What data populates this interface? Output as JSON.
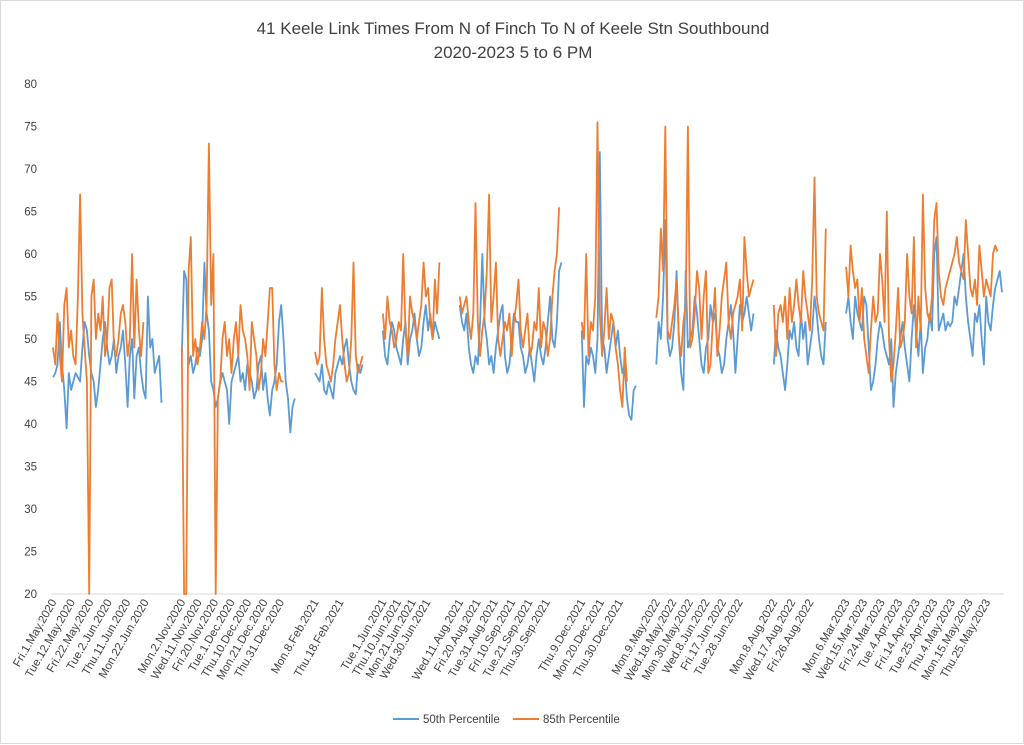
{
  "chart_data": {
    "type": "line",
    "title": "41 Keele Link Times From N of Finch To N of Keele Stn Southbound",
    "subtitle": "2020-2023 5 to 6 PM",
    "xlabel": "",
    "ylabel": "",
    "ylim": [
      20,
      80
    ],
    "yticks": [
      20,
      25,
      30,
      35,
      40,
      45,
      50,
      55,
      60,
      65,
      70,
      75,
      80
    ],
    "grid": false,
    "legend_position": "bottom",
    "colors": {
      "p50": "#5b9bd5",
      "p85": "#ed7d31"
    },
    "x_tick_labels": [
      "Fri.1.May.2020",
      "Tue.12.May.2020",
      "Fri.22.May.2020",
      "Tue.2.Jun.2020",
      "Thu.11.Jun.2020",
      "Mon.22.Jun.2020",
      "Mon.2.Nov.2020",
      "Wed.11.Nov.2020",
      "Fri.20.Nov.2020",
      "Tue.1.Dec.2020",
      "Thu.10.Dec.2020",
      "Mon.21.Dec.2020",
      "Thu.31.Dec.2020",
      "Mon.8.Feb.2021",
      "Thu.18.Feb.2021",
      "Tue.1.Jun.2021",
      "Thu.10.Jun.2021",
      "Mon.21.Jun.2021",
      "Wed.30.Jun.2021",
      "Wed.11.Aug.2021",
      "Fri.20.Aug.2021",
      "Tue.31.Aug.2021",
      "Fri.10.Sep.2021",
      "Tue.21.Sep.2021",
      "Thu.30.Sep.2021",
      "Thu.9.Dec.2021",
      "Mon.20.Dec.2021",
      "Thu.30.Dec.2021",
      "Mon.9.May.2022",
      "Wed.18.May.2022",
      "Mon.30.May.2022",
      "Wed.8.Jun.2022",
      "Fri.17.Jun.2022",
      "Tue.28.Jun.2022",
      "Mon.8.Aug.2022",
      "Wed.17.Aug.2022",
      "Fri.26.Aug.2022",
      "Mon.6.Mar.2023",
      "Wed.15.Mar.2023",
      "Fri.24.Mar.2023",
      "Tue.4.Apr.2023",
      "Fri.14.Apr.2023",
      "Tue.25.Apr.2023",
      "Thu.4.May.2023",
      "Mon.15.May.2023",
      "Thu.25.May.2023"
    ],
    "series": [
      {
        "name": "50th Percentile",
        "segments": [
          [
            45.5,
            46,
            47,
            52,
            47,
            44,
            39.5,
            46,
            44,
            45,
            46,
            45.5,
            45,
            49,
            52,
            51,
            48,
            46,
            45,
            42,
            44,
            47,
            50,
            52,
            49,
            47,
            48,
            50,
            46,
            48,
            49,
            51,
            47,
            42,
            48,
            50,
            43,
            48,
            49,
            46,
            44,
            43,
            55,
            49,
            50,
            46,
            47,
            48,
            42.5
          ],
          [
            48,
            58,
            57,
            47,
            48,
            46,
            47,
            49,
            48,
            50,
            59,
            53,
            51,
            45,
            44,
            42,
            43,
            45,
            46,
            45,
            44,
            40,
            45,
            46,
            47,
            48,
            45,
            46,
            44,
            47,
            46,
            45,
            43,
            44,
            47,
            48,
            44,
            46,
            43,
            41,
            44,
            45,
            47,
            52,
            54,
            50,
            45,
            43,
            39,
            42,
            43
          ],
          [
            46,
            45.5,
            45,
            47,
            44,
            43.5,
            45,
            44,
            43,
            46,
            47,
            48,
            47,
            49,
            50,
            47,
            45,
            44,
            43.5,
            47,
            46,
            47
          ],
          [
            51,
            48,
            47,
            50,
            52,
            51,
            49,
            48,
            47,
            50,
            52,
            47,
            50,
            51,
            53,
            50,
            48,
            49,
            52,
            54,
            51,
            53,
            50,
            52,
            51,
            50
          ],
          [
            54,
            52,
            51,
            53,
            49,
            47,
            46,
            48,
            47,
            52,
            60,
            52,
            50,
            47,
            48,
            46,
            49,
            51,
            53,
            54,
            48,
            46,
            47,
            50,
            53,
            52,
            52,
            49,
            48,
            46,
            47,
            49,
            47,
            45,
            48,
            50,
            48,
            47,
            49,
            52,
            55,
            50,
            49,
            52,
            58,
            59
          ],
          [
            51,
            42,
            48,
            47,
            49,
            48,
            46,
            50,
            72,
            50,
            49,
            46,
            48,
            50,
            52,
            49,
            51,
            48,
            46,
            47,
            43,
            41,
            40.5,
            44,
            44.5
          ],
          [
            47,
            52,
            50,
            55,
            64,
            50,
            48,
            49,
            52,
            58,
            50,
            46,
            44,
            58,
            49,
            50,
            51,
            55,
            53,
            50,
            47,
            46,
            49,
            50,
            54,
            52,
            53,
            49,
            48,
            46,
            47,
            50,
            52,
            54,
            51,
            46,
            50,
            54,
            52,
            53,
            55,
            53,
            51,
            53
          ],
          [
            47,
            51,
            49,
            48,
            46,
            44,
            47,
            51,
            50,
            52,
            49,
            48,
            53,
            50,
            52,
            47,
            49,
            51,
            55,
            53,
            50,
            48,
            47,
            52
          ],
          [
            53,
            55,
            52,
            50,
            55,
            53,
            52,
            51,
            55,
            54,
            49,
            44,
            45,
            47,
            50,
            52,
            51,
            49,
            48,
            47,
            50,
            42,
            46,
            48,
            50,
            52,
            49,
            47,
            45,
            50,
            54,
            51,
            48,
            52,
            46,
            49,
            50,
            53,
            51,
            60,
            62,
            51,
            52,
            53,
            51,
            52,
            51.5,
            52,
            55,
            54,
            56,
            58,
            60,
            55,
            52,
            50,
            48,
            53,
            52,
            54,
            50,
            47,
            55,
            52,
            51,
            54,
            56,
            57,
            58,
            55.5
          ]
        ]
      },
      {
        "name": "85th Percentile",
        "segments": [
          [
            49,
            47,
            53,
            48,
            45,
            54,
            56,
            49,
            51,
            48,
            47,
            55,
            67,
            53,
            49,
            45,
            20,
            55,
            57,
            50,
            53,
            51,
            55,
            48,
            50,
            56,
            57,
            49,
            48,
            50,
            53,
            54,
            52,
            48,
            50,
            60,
            49,
            57,
            51,
            48,
            52
          ],
          [
            49,
            20,
            20,
            58,
            62,
            48,
            50,
            47,
            49,
            52,
            50,
            54,
            73,
            54,
            60,
            20,
            43,
            45,
            50,
            52,
            48,
            50,
            46,
            50,
            52,
            48,
            54,
            51,
            50,
            48,
            44,
            52,
            50,
            48,
            44,
            46,
            50,
            48,
            52,
            56,
            56,
            47,
            44,
            46,
            45,
            45
          ],
          [
            48.5,
            47,
            48,
            56,
            50,
            47,
            46,
            45,
            47,
            50,
            52,
            54,
            50,
            47,
            45,
            46,
            50,
            59,
            48,
            46,
            47,
            48
          ],
          [
            53,
            50,
            55,
            52,
            51,
            49,
            50,
            52,
            51,
            60,
            51,
            48,
            55,
            53,
            52,
            50,
            52,
            54,
            59,
            55,
            56,
            52,
            50,
            57,
            53,
            59
          ],
          [
            55,
            53,
            54,
            55,
            52,
            50,
            53,
            66,
            52,
            48,
            51,
            53,
            58,
            67,
            52,
            55,
            59,
            50,
            48,
            50,
            52,
            51,
            53,
            48,
            52,
            54,
            57,
            51,
            49,
            51,
            53,
            48,
            49,
            52,
            51,
            56,
            49,
            52,
            51,
            48,
            50,
            55,
            58,
            60,
            65.5
          ],
          [
            52,
            50,
            60,
            48,
            52,
            51,
            55,
            75.5,
            53,
            48,
            51,
            56,
            50,
            53,
            52,
            49,
            47,
            44,
            42,
            49,
            45
          ],
          [
            52.5,
            55,
            63,
            58,
            75,
            51,
            50,
            52,
            54,
            57,
            50,
            48,
            52,
            54,
            75,
            49,
            50,
            53,
            58,
            56,
            50,
            55,
            58,
            46,
            47,
            52,
            56,
            48,
            51,
            55,
            57,
            59,
            52,
            50,
            53,
            54,
            55,
            57,
            51,
            62,
            58,
            55,
            56,
            57
          ],
          [
            54,
            48,
            53,
            54,
            52,
            55,
            50,
            56,
            52,
            54,
            57,
            54,
            52,
            58,
            55,
            53,
            51,
            57,
            69,
            55,
            53,
            52,
            51,
            63
          ],
          [
            58.5,
            55,
            61,
            58,
            56,
            57,
            52,
            56,
            50,
            48,
            46,
            51,
            55,
            52,
            53,
            60,
            57,
            52,
            65,
            50,
            45,
            47,
            51,
            56,
            49,
            50,
            52,
            60,
            55,
            53,
            62,
            49,
            55,
            51,
            67,
            56,
            53,
            52,
            55,
            64,
            66,
            58,
            55,
            54,
            56,
            57,
            58,
            59,
            60,
            62,
            59,
            58,
            57,
            64,
            60,
            56,
            55,
            57,
            54,
            61,
            58,
            55,
            57,
            56,
            55,
            60,
            61,
            60.3
          ]
        ]
      }
    ]
  }
}
